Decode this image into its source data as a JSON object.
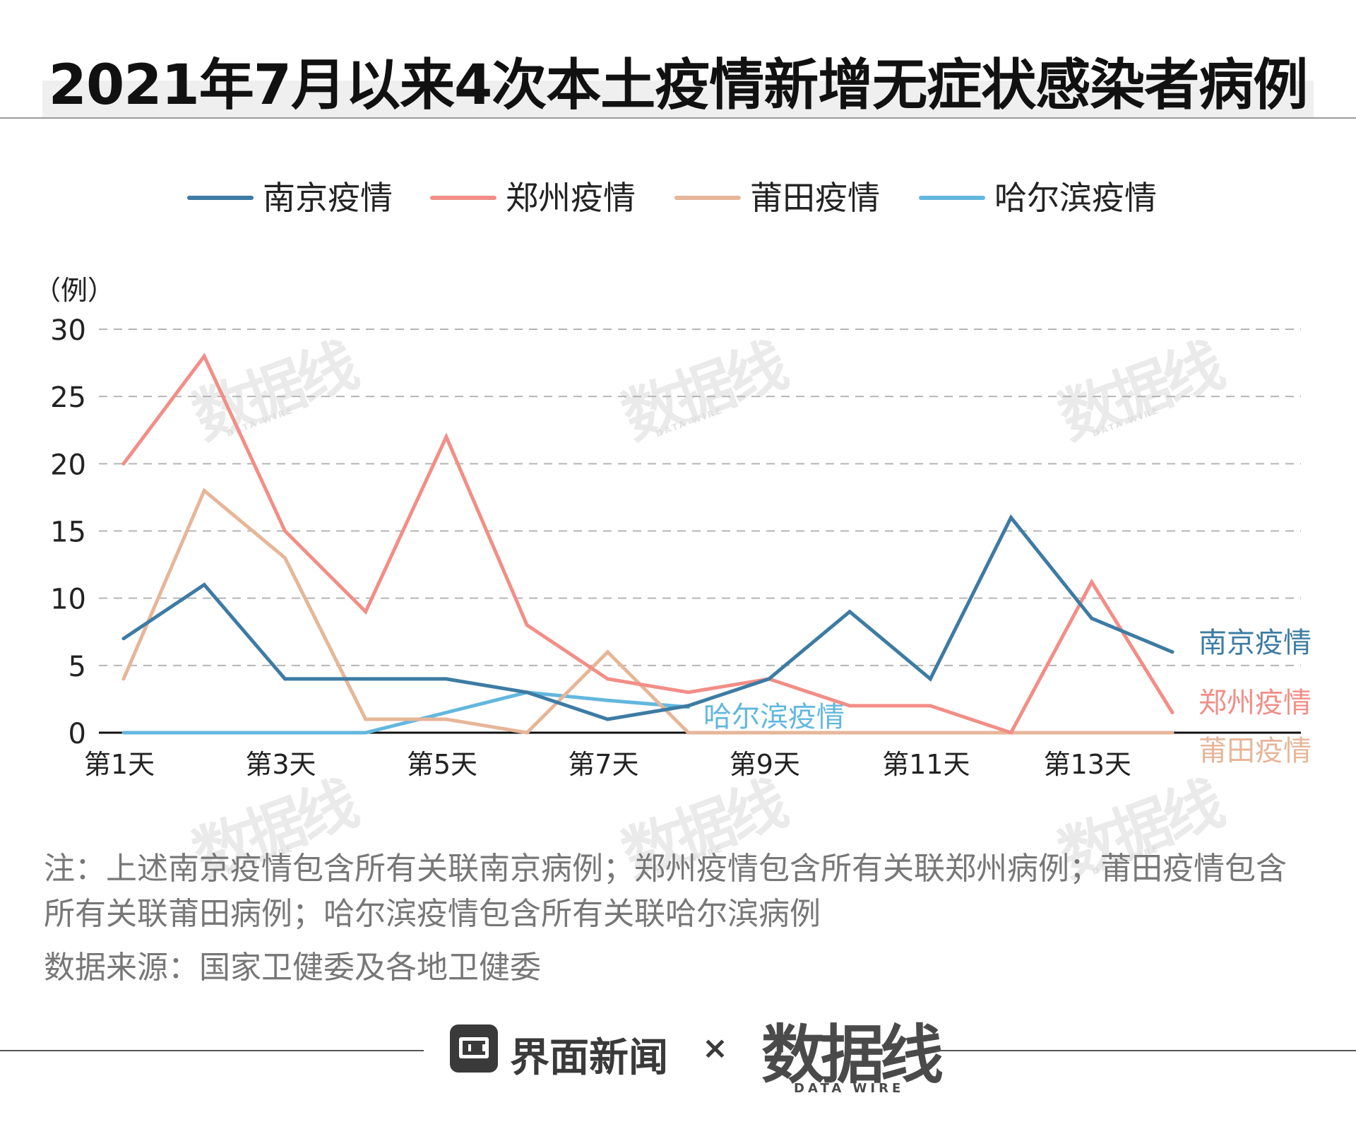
{
  "title": "2021年7月以来4次本土疫情新增无症状感染者病例",
  "note": "注：上述南京疫情包含所有关联南京病例；郑州疫情包含所有关联郑州病例；莆田疫情包含所有关联莆田病例；哈尔滨疫情包含所有关联哈尔滨病例",
  "source": "数据来源：国家卫健委及各地卫健委",
  "footer": {
    "brand_name": "界面新闻",
    "times": "×",
    "datawire_logo": "数据线",
    "datawire_sub": "DATA WIRE",
    "brand_icon": "jiemian-logo-icon"
  },
  "watermark": {
    "text": "数据线",
    "sub": "DATA WIRE"
  },
  "chart_data": {
    "type": "line",
    "ylabel": "（例）",
    "xlabel": "",
    "ylim": [
      0,
      30
    ],
    "yticks": [
      0,
      5,
      10,
      15,
      20,
      25,
      30
    ],
    "grid": true,
    "x": [
      1,
      2,
      3,
      4,
      5,
      6,
      7,
      8,
      9,
      10,
      11,
      12,
      13,
      14
    ],
    "xtick_labels": [
      "第1天",
      "第3天",
      "第5天",
      "第7天",
      "第9天",
      "第11天",
      "第13天"
    ],
    "xtick_positions": [
      1,
      3,
      5,
      7,
      9,
      11,
      13
    ],
    "legend_position": "top",
    "series": [
      {
        "name": "南京疫情",
        "color": "#3d7ba3",
        "x": [
          1,
          2,
          3,
          4,
          5,
          6,
          7,
          8,
          9,
          10,
          11,
          12,
          13,
          14
        ],
        "values": [
          7,
          11,
          4,
          4,
          4,
          3,
          1,
          2,
          4,
          9,
          4,
          16,
          8.5,
          6
        ],
        "end_label": "南京疫情"
      },
      {
        "name": "郑州疫情",
        "color": "#f28e87",
        "x": [
          1,
          2,
          3,
          4,
          5,
          6,
          7,
          8,
          9,
          10,
          11,
          12,
          13,
          14
        ],
        "values": [
          20,
          28,
          15,
          9,
          22,
          8,
          4,
          3,
          4,
          2,
          2,
          0,
          11.2,
          1.5
        ],
        "end_label": "郑州疫情"
      },
      {
        "name": "莆田疫情",
        "color": "#e6b699",
        "x": [
          1,
          2,
          3,
          4,
          5,
          6,
          7,
          8,
          9,
          10,
          11,
          12,
          13,
          14
        ],
        "values": [
          4,
          18,
          13,
          1,
          1,
          0,
          6,
          0,
          0,
          0,
          0,
          0,
          0,
          0
        ],
        "end_label": "莆田疫情"
      },
      {
        "name": "哈尔滨疫情",
        "color": "#63b7de",
        "x": [
          1,
          2,
          3,
          4,
          5,
          6,
          7,
          8
        ],
        "values": [
          0,
          0,
          0,
          0,
          1.5,
          3,
          2.4,
          1.9
        ],
        "end_label": "哈尔滨疫情"
      }
    ]
  }
}
